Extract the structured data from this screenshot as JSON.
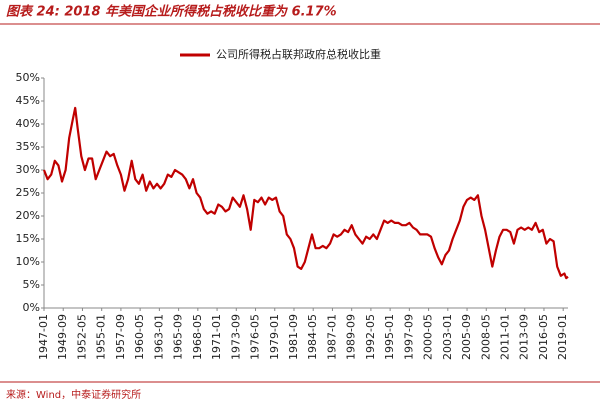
{
  "chart_data": {
    "type": "line",
    "title": "图表 24: 2018 年美国企业所得税占税收比重为 6.17%",
    "source": "来源：Wind，中泰证券研究所",
    "legend": "top",
    "xlim": [
      "1947-01",
      "2019-09"
    ],
    "xticks": [
      "1947-01",
      "1949-09",
      "1952-05",
      "1955-01",
      "1957-09",
      "1960-05",
      "1963-01",
      "1965-09",
      "1968-05",
      "1971-01",
      "1973-09",
      "1976-05",
      "1979-01",
      "1981-09",
      "1984-05",
      "1987-01",
      "1989-09",
      "1992-05",
      "1995-01",
      "1997-09",
      "2000-05",
      "2003-01",
      "2005-09",
      "2008-05",
      "2011-01",
      "2013-09",
      "2016-05",
      "2019-01"
    ],
    "ylim": [
      0,
      50
    ],
    "yticks": [
      {
        "value": 0,
        "label": "0%"
      },
      {
        "value": 5,
        "label": "5%"
      },
      {
        "value": 10,
        "label": "10%"
      },
      {
        "value": 15,
        "label": "15%"
      },
      {
        "value": 20,
        "label": "20%"
      },
      {
        "value": 25,
        "label": "25%"
      },
      {
        "value": 30,
        "label": "30%"
      },
      {
        "value": 35,
        "label": "35%"
      },
      {
        "value": 40,
        "label": "40%"
      },
      {
        "value": 45,
        "label": "45%"
      },
      {
        "value": 50,
        "label": "50%"
      }
    ],
    "x": [
      "1947-01",
      "1947-07",
      "1948-01",
      "1948-07",
      "1949-01",
      "1949-07",
      "1950-01",
      "1950-07",
      "1951-01",
      "1951-05",
      "1951-09",
      "1952-03",
      "1952-09",
      "1953-03",
      "1953-09",
      "1954-03",
      "1954-09",
      "1955-03",
      "1955-09",
      "1956-03",
      "1956-09",
      "1957-03",
      "1957-09",
      "1958-03",
      "1958-09",
      "1959-03",
      "1959-09",
      "1960-03",
      "1960-09",
      "1961-03",
      "1961-09",
      "1962-03",
      "1962-09",
      "1963-03",
      "1963-09",
      "1964-03",
      "1964-09",
      "1965-03",
      "1965-09",
      "1966-03",
      "1966-09",
      "1967-03",
      "1967-09",
      "1968-03",
      "1968-09",
      "1969-03",
      "1969-09",
      "1970-03",
      "1970-09",
      "1971-03",
      "1971-09",
      "1972-03",
      "1972-09",
      "1973-03",
      "1973-09",
      "1974-03",
      "1974-09",
      "1975-03",
      "1975-09",
      "1976-03",
      "1976-09",
      "1977-03",
      "1977-09",
      "1978-03",
      "1978-09",
      "1979-03",
      "1979-09",
      "1980-03",
      "1980-09",
      "1981-03",
      "1981-09",
      "1982-03",
      "1982-09",
      "1983-03",
      "1983-09",
      "1984-03",
      "1984-09",
      "1985-03",
      "1985-09",
      "1986-03",
      "1986-09",
      "1987-03",
      "1987-09",
      "1988-03",
      "1988-09",
      "1989-03",
      "1989-09",
      "1990-03",
      "1990-09",
      "1991-03",
      "1991-09",
      "1992-03",
      "1992-09",
      "1993-03",
      "1993-09",
      "1994-03",
      "1994-09",
      "1995-03",
      "1995-09",
      "1996-03",
      "1996-09",
      "1997-03",
      "1997-09",
      "1998-03",
      "1998-09",
      "1999-03",
      "1999-09",
      "2000-03",
      "2000-09",
      "2001-03",
      "2001-09",
      "2002-03",
      "2002-09",
      "2003-03",
      "2003-09",
      "2004-03",
      "2004-09",
      "2005-03",
      "2005-09",
      "2006-03",
      "2006-09",
      "2007-03",
      "2007-09",
      "2008-03",
      "2008-09",
      "2009-03",
      "2009-09",
      "2010-03",
      "2010-09",
      "2011-03",
      "2011-09",
      "2012-03",
      "2012-09",
      "2013-03",
      "2013-09",
      "2014-03",
      "2014-09",
      "2015-03",
      "2015-09",
      "2016-03",
      "2016-09",
      "2017-03",
      "2017-09",
      "2018-03",
      "2018-09",
      "2019-03",
      "2019-06",
      "2019-09"
    ],
    "series": [
      {
        "name": "公司所得税占联邦政府总税收比重",
        "color": "#c00000",
        "values": [
          30,
          28,
          29,
          32,
          31,
          27.5,
          30,
          37,
          41,
          43.5,
          39,
          33,
          30,
          32.5,
          32.5,
          28,
          30,
          32,
          34,
          33,
          33.5,
          31,
          29,
          25.5,
          28,
          32,
          28,
          27,
          29,
          25.5,
          27.5,
          26,
          27,
          26,
          27,
          29,
          28.5,
          30,
          29.5,
          29,
          28,
          26,
          28,
          25,
          24,
          21.5,
          20.5,
          21,
          20.5,
          22.5,
          22,
          21,
          21.5,
          24,
          23,
          22,
          24.5,
          21.5,
          17,
          23.5,
          23,
          24,
          22.5,
          24,
          23.5,
          24,
          21,
          20,
          16,
          15,
          13,
          9,
          8.5,
          10,
          13,
          16,
          13,
          13,
          13.5,
          13,
          14,
          16,
          15.5,
          16,
          17,
          16.5,
          18,
          16,
          15,
          14,
          15.5,
          15,
          16,
          15,
          17,
          19,
          18.5,
          19,
          18.5,
          18.5,
          18,
          18,
          18.5,
          17.5,
          17,
          16,
          16,
          16,
          15.5,
          13,
          11,
          9.5,
          11.5,
          12.5,
          15,
          17,
          19,
          22,
          23.5,
          24,
          23.5,
          24.5,
          20,
          17,
          13,
          9,
          12.5,
          15.5,
          17,
          17,
          16.5,
          14,
          17,
          17.5,
          17,
          17.5,
          17,
          18.5,
          16.5,
          17,
          14,
          15,
          14.5,
          9,
          7,
          7.5,
          6.5,
          6.8
        ]
      }
    ]
  }
}
